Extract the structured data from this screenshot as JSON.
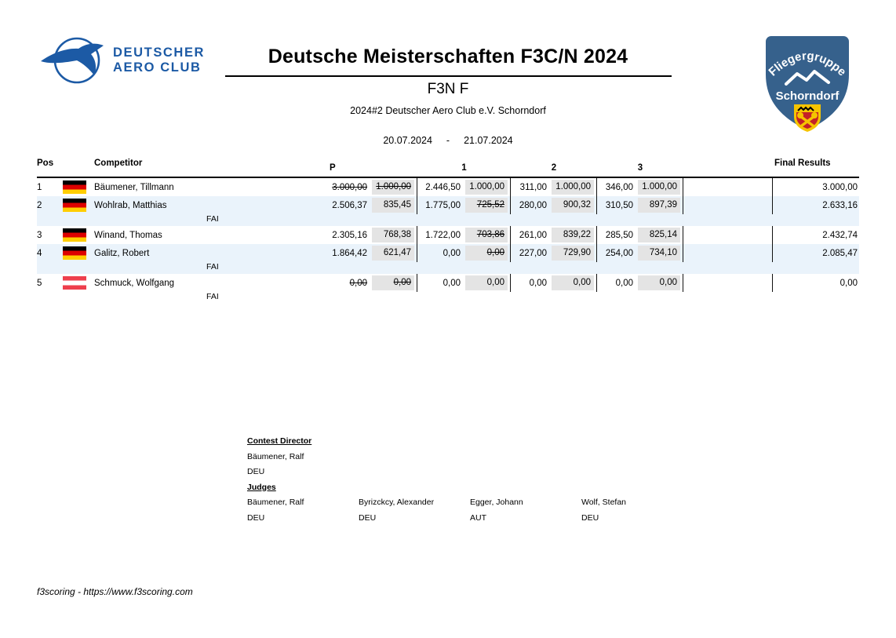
{
  "header": {
    "title": "Deutsche Meisterschaften F3C/N 2024",
    "class_name": "F3N F",
    "subtitle": "2024#2 Deutscher Aero Club e.V. Schorndorf",
    "date_from": "20.07.2024",
    "date_separator": "-",
    "date_to": "21.07.2024",
    "daec_logo": {
      "line1": "DEUTSCHER",
      "line2": "AERO CLUB"
    },
    "club_logo": {
      "line1": "Fliegergruppe",
      "line2": "Schorndorf"
    }
  },
  "colors": {
    "accent_blue": "#1c5aa5",
    "shield_blue": "#36618c",
    "stripe_row": "#eaf3fb",
    "score_cell_gray": "#e4e4e4",
    "crest_red": "#c42127",
    "crest_yellow": "#f5c400"
  },
  "table": {
    "columns": {
      "pos": "Pos",
      "competitor": "Competitor",
      "p": "P",
      "round1": "1",
      "round2": "2",
      "round3": "3",
      "final": "Final Results"
    },
    "rows": [
      {
        "pos": "1",
        "flag": "germany",
        "name": "Bäumener, Tillmann",
        "league": "",
        "scores": [
          {
            "raw": "3.000,00",
            "norm": "1.000,00",
            "raw_struck": true,
            "norm_struck": true
          },
          {
            "raw": "2.446,50",
            "norm": "1.000,00"
          },
          {
            "raw": "311,00",
            "norm": "1.000,00"
          },
          {
            "raw": "346,00",
            "norm": "1.000,00"
          }
        ],
        "final": "3.000,00"
      },
      {
        "pos": "2",
        "flag": "germany",
        "name": "Wohlrab, Matthias",
        "league": "FAI",
        "scores": [
          {
            "raw": "2.506,37",
            "norm": "835,45"
          },
          {
            "raw": "1.775,00",
            "norm": "725,52",
            "norm_struck": true
          },
          {
            "raw": "280,00",
            "norm": "900,32"
          },
          {
            "raw": "310,50",
            "norm": "897,39"
          }
        ],
        "final": "2.633,16"
      },
      {
        "pos": "3",
        "flag": "germany",
        "name": "Winand, Thomas",
        "league": "",
        "scores": [
          {
            "raw": "2.305,16",
            "norm": "768,38"
          },
          {
            "raw": "1.722,00",
            "norm": "703,86",
            "norm_struck": true
          },
          {
            "raw": "261,00",
            "norm": "839,22"
          },
          {
            "raw": "285,50",
            "norm": "825,14"
          }
        ],
        "final": "2.432,74"
      },
      {
        "pos": "4",
        "flag": "germany",
        "name": "Galitz, Robert",
        "league": "FAI",
        "scores": [
          {
            "raw": "1.864,42",
            "norm": "621,47"
          },
          {
            "raw": "0,00",
            "norm": "0,00",
            "norm_struck": true
          },
          {
            "raw": "227,00",
            "norm": "729,90"
          },
          {
            "raw": "254,00",
            "norm": "734,10"
          }
        ],
        "final": "2.085,47"
      },
      {
        "pos": "5",
        "flag": "austria",
        "name": "Schmuck, Wolfgang",
        "league": "FAI",
        "scores": [
          {
            "raw": "0,00",
            "norm": "0,00",
            "raw_struck": true,
            "norm_struck": true
          },
          {
            "raw": "0,00",
            "norm": "0,00"
          },
          {
            "raw": "0,00",
            "norm": "0,00"
          },
          {
            "raw": "0,00",
            "norm": "0,00"
          }
        ],
        "final": "0,00"
      }
    ]
  },
  "officials": {
    "contest_director": {
      "heading": "Contest Director",
      "name": "Bäumener, Ralf",
      "country": "DEU"
    },
    "judges": {
      "heading": "Judges",
      "people": [
        {
          "name": "Bäumener, Ralf",
          "country": "DEU"
        },
        {
          "name": "Byrizckcy, Alexander",
          "country": "DEU"
        },
        {
          "name": "Egger, Johann",
          "country": "AUT"
        },
        {
          "name": "Wolf, Stefan",
          "country": "DEU"
        }
      ]
    }
  },
  "footer": {
    "text": "f3scoring - https://www.f3scoring.com"
  }
}
